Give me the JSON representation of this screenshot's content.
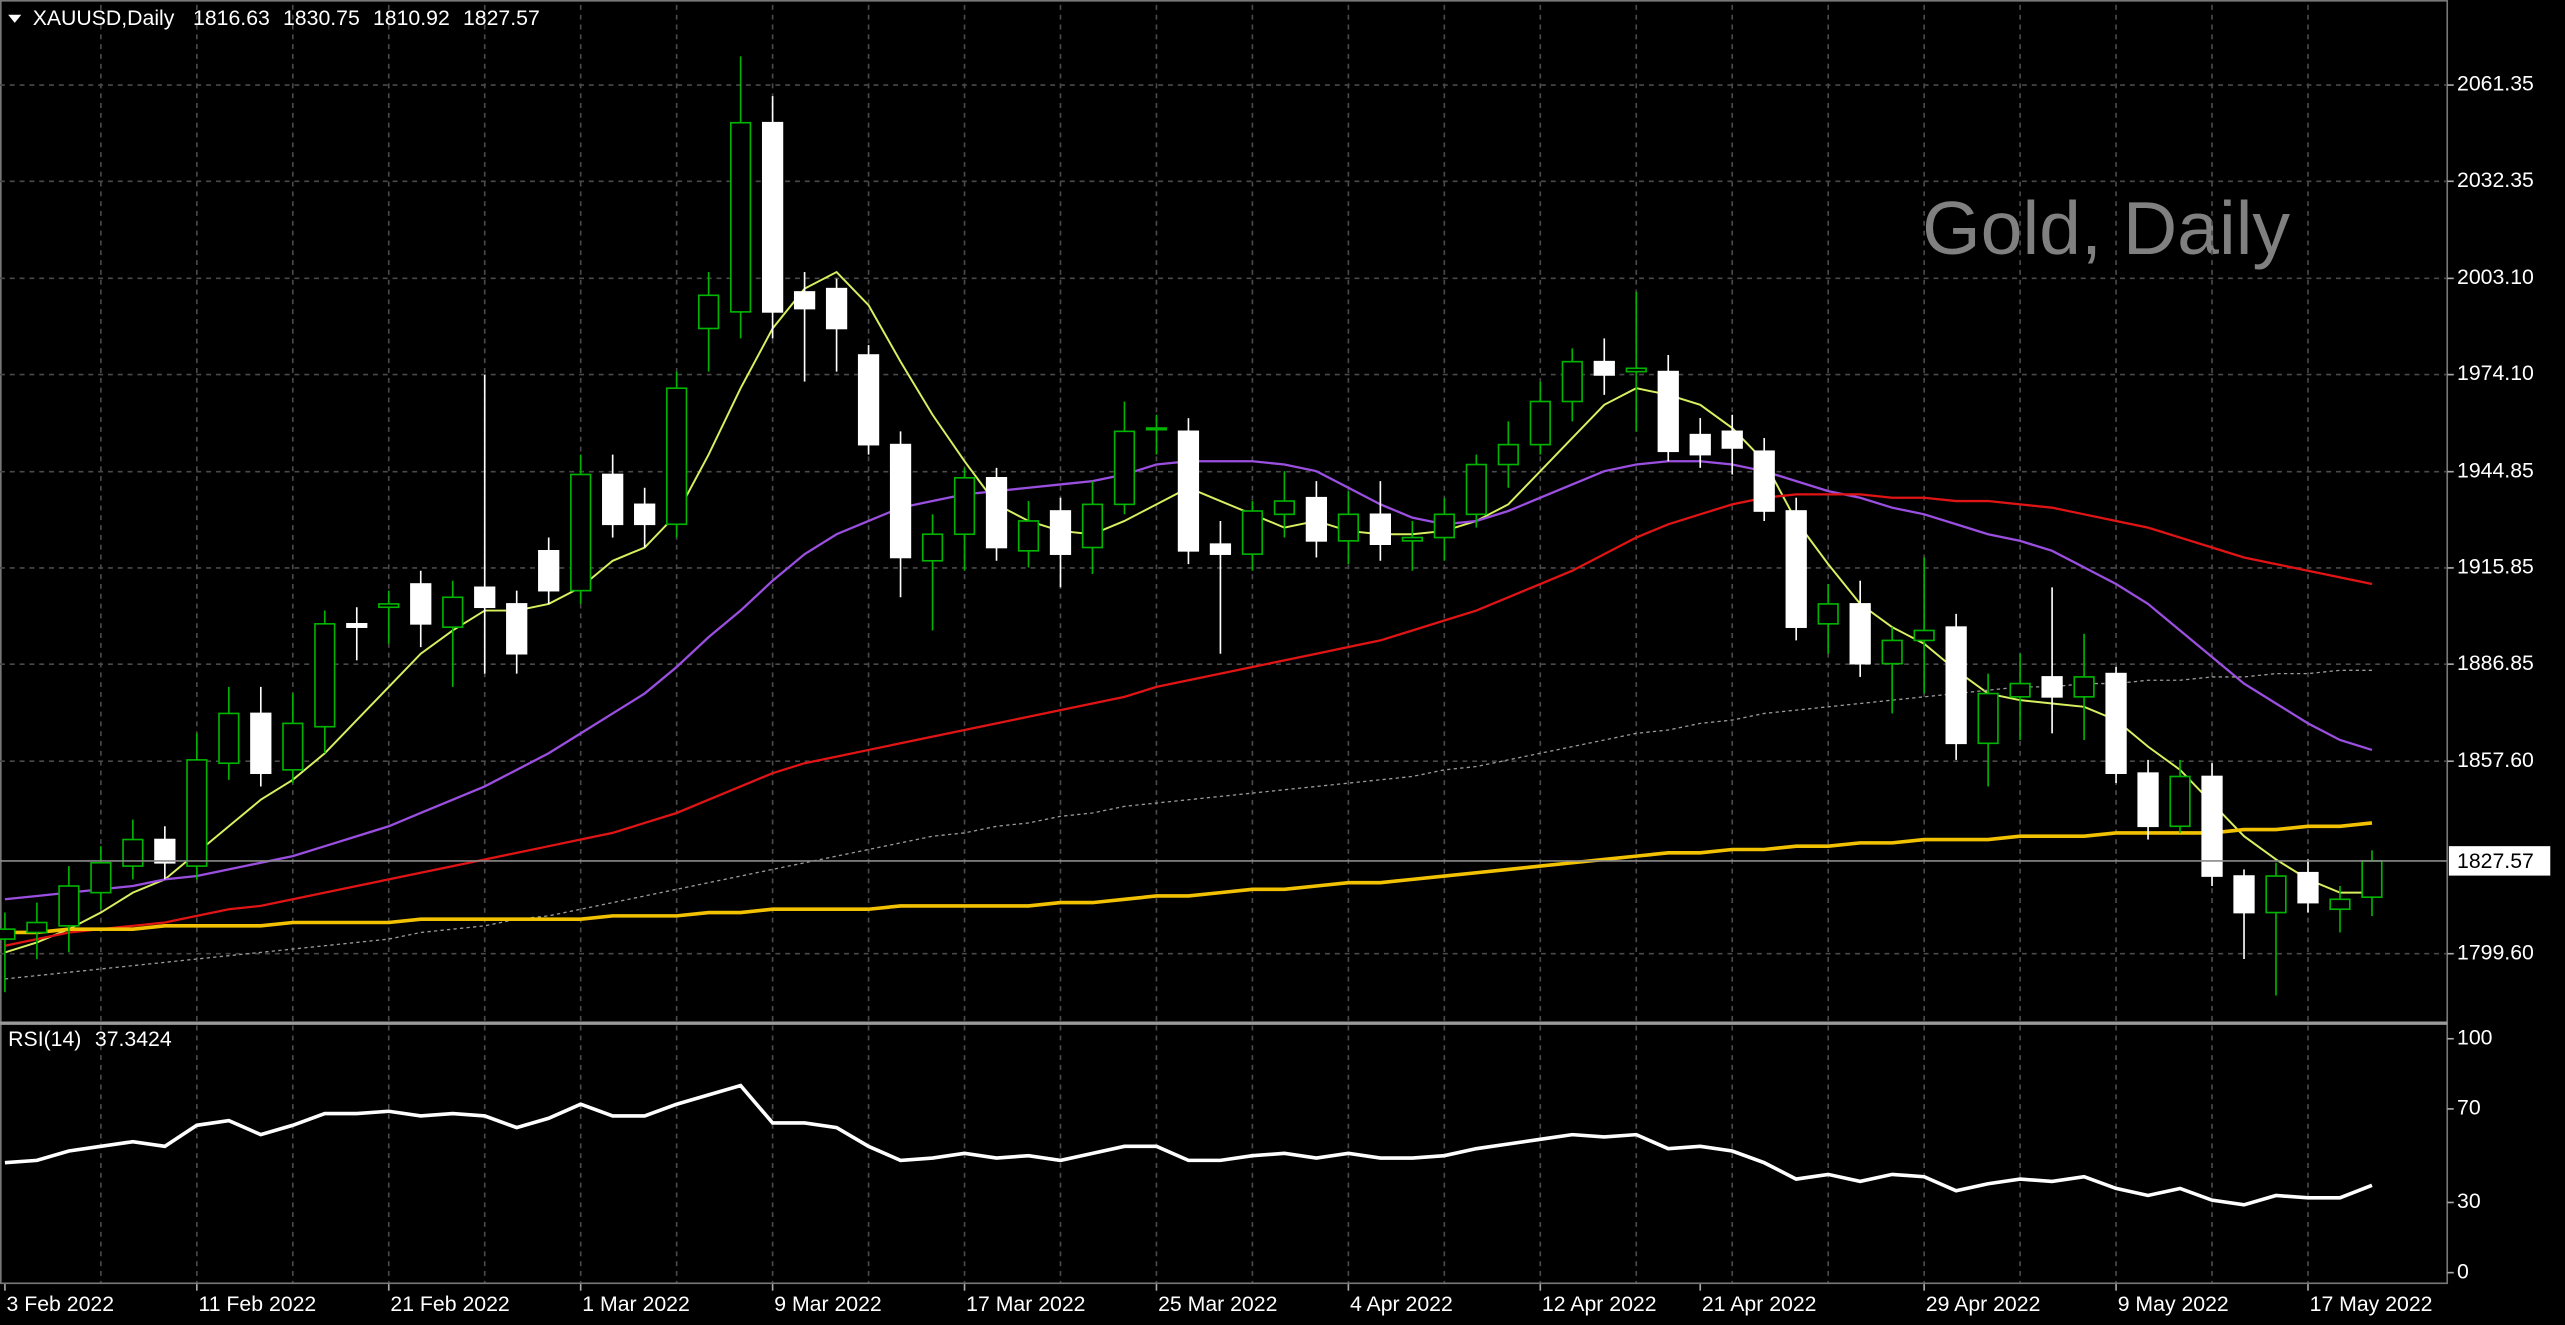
{
  "chart_data": [
    {
      "type": "candlestick",
      "title": "XAUUSD,Daily",
      "watermark": "Gold, Daily",
      "categories": [
        "3 Feb 2022",
        null,
        null,
        null,
        null,
        null,
        "11 Feb 2022",
        null,
        null,
        null,
        null,
        null,
        "21 Feb 2022",
        null,
        null,
        null,
        null,
        null,
        "1 Mar 2022",
        null,
        null,
        null,
        null,
        null,
        "9 Mar 2022",
        null,
        null,
        null,
        null,
        null,
        "17 Mar 2022",
        null,
        null,
        null,
        null,
        null,
        "25 Mar 2022",
        null,
        null,
        null,
        null,
        null,
        "4 Apr 2022",
        null,
        null,
        null,
        null,
        null,
        "12 Apr 2022",
        null,
        null,
        null,
        null,
        "21 Apr 2022",
        null,
        null,
        null,
        null,
        null,
        null,
        "29 Apr 2022",
        null,
        null,
        null,
        null,
        null,
        "9 May 2022",
        null,
        null,
        null,
        null,
        null,
        "17 May 2022",
        null,
        null
      ],
      "open": [
        1804,
        1806,
        1808,
        1818,
        1826,
        1834,
        1826,
        1857,
        1872,
        1855,
        1868,
        1899,
        1904,
        1911,
        1898,
        1910,
        1905,
        1921,
        1909,
        1944,
        1935,
        1929,
        1988,
        1993,
        2050,
        1999,
        2000,
        1980,
        1953,
        1918,
        1926,
        1943,
        1921,
        1933,
        1922,
        1935,
        1958,
        1957,
        1923,
        1920,
        1932,
        1937,
        1924,
        1932,
        1924,
        1925,
        1932,
        1947,
        1953,
        1966,
        1978,
        1975,
        1975,
        1956,
        1957,
        1951,
        1933,
        1899,
        1905,
        1887,
        1894,
        1898,
        1863,
        1877,
        1883,
        1877,
        1884,
        1854,
        1838,
        1853,
        1823,
        1812,
        1824,
        1813,
        1816.63
      ],
      "high": [
        1812,
        1815,
        1826,
        1832,
        1840,
        1838,
        1866,
        1880,
        1880,
        1878,
        1903,
        1904,
        1909,
        1915,
        1912,
        1974,
        1909,
        1925,
        1950,
        1950,
        1940,
        1975,
        2005,
        2070,
        2058,
        2005,
        2003,
        1983,
        1957,
        1932,
        1946,
        1946,
        1936,
        1937,
        1942,
        1966,
        1962,
        1961,
        1930,
        1936,
        1945,
        1942,
        1939,
        1942,
        1930,
        1937,
        1950,
        1960,
        1972,
        1982,
        1985,
        1999,
        1980,
        1961,
        1962,
        1955,
        1937,
        1911,
        1912,
        1898,
        1919,
        1902,
        1884,
        1890,
        1910,
        1896,
        1886,
        1858,
        1858,
        1857,
        1825,
        1827,
        1828,
        1820,
        1830.75
      ],
      "low": [
        1788,
        1798,
        1800,
        1813,
        1822,
        1822,
        1822,
        1852,
        1850,
        1851,
        1860,
        1888,
        1893,
        1892,
        1880,
        1884,
        1884,
        1905,
        1905,
        1925,
        1922,
        1925,
        1975,
        1985,
        1985,
        1972,
        1975,
        1950,
        1907,
        1897,
        1915,
        1918,
        1916,
        1910,
        1914,
        1932,
        1950,
        1917,
        1890,
        1915,
        1925,
        1919,
        1917,
        1918,
        1915,
        1918,
        1928,
        1940,
        1950,
        1960,
        1968,
        1957,
        1948,
        1946,
        1944,
        1930,
        1894,
        1890,
        1883,
        1872,
        1878,
        1858,
        1850,
        1864,
        1866,
        1864,
        1851,
        1834,
        1836,
        1820,
        1798,
        1787,
        1812,
        1806,
        1810.92
      ],
      "close": [
        1807,
        1809,
        1820,
        1827,
        1834,
        1827,
        1858,
        1872,
        1854,
        1869,
        1899,
        1898,
        1905,
        1899,
        1907,
        1904,
        1890,
        1909,
        1944,
        1929,
        1929,
        1970,
        1998,
        2050,
        1993,
        1994,
        1988,
        1953,
        1919,
        1926,
        1943,
        1922,
        1930,
        1920,
        1935,
        1957,
        1958,
        1921,
        1920,
        1933,
        1936,
        1924,
        1932,
        1923,
        1925,
        1932,
        1947,
        1953,
        1966,
        1978,
        1974,
        1976,
        1951,
        1950,
        1952,
        1933,
        1898,
        1905,
        1887,
        1894,
        1897,
        1863,
        1878,
        1881,
        1877,
        1883,
        1854,
        1838,
        1853,
        1823,
        1812,
        1823,
        1815,
        1816,
        1827.57
      ],
      "up_color": "#00b400",
      "down_color": "#ffffff",
      "series": [
        {
          "color": "#d8f060",
          "width": 1.2,
          "values": [
            1800,
            1803,
            1807,
            1812,
            1818,
            1822,
            1830,
            1838,
            1846,
            1852,
            1860,
            1870,
            1880,
            1890,
            1897,
            1903,
            1903,
            1905,
            1910,
            1918,
            1922,
            1932,
            1950,
            1970,
            1988,
            2000,
            2005,
            1995,
            1978,
            1962,
            1948,
            1935,
            1930,
            1927,
            1926,
            1930,
            1935,
            1940,
            1936,
            1932,
            1928,
            1930,
            1927,
            1926,
            1926,
            1927,
            1930,
            1935,
            1945,
            1955,
            1965,
            1970,
            1968,
            1965,
            1958,
            1948,
            1930,
            1917,
            1905,
            1898,
            1893,
            1885,
            1878,
            1876,
            1875,
            1874,
            1870,
            1862,
            1855,
            1845,
            1835,
            1828,
            1822,
            1818,
            1818
          ]
        },
        {
          "color": "#9b4fe0",
          "width": 1.4,
          "values": [
            1816,
            1817,
            1818,
            1819,
            1820,
            1822,
            1823,
            1825,
            1827,
            1829,
            1832,
            1835,
            1838,
            1842,
            1846,
            1850,
            1855,
            1860,
            1866,
            1872,
            1878,
            1886,
            1895,
            1903,
            1912,
            1920,
            1926,
            1930,
            1934,
            1936,
            1938,
            1939,
            1940,
            1941,
            1942,
            1944,
            1947,
            1948,
            1948,
            1948,
            1947,
            1945,
            1940,
            1935,
            1931,
            1929,
            1930,
            1933,
            1937,
            1941,
            1945,
            1947,
            1948,
            1948,
            1947,
            1945,
            1942,
            1939,
            1937,
            1934,
            1932,
            1929,
            1926,
            1924,
            1921,
            1916,
            1911,
            1905,
            1897,
            1889,
            1881,
            1875,
            1869,
            1864,
            1861
          ]
        },
        {
          "color": "#e01414",
          "width": 1.4,
          "values": [
            1802,
            1804,
            1806,
            1807,
            1808,
            1809,
            1811,
            1813,
            1814,
            1816,
            1818,
            1820,
            1822,
            1824,
            1826,
            1828,
            1830,
            1832,
            1834,
            1836,
            1839,
            1842,
            1846,
            1850,
            1854,
            1857,
            1859,
            1861,
            1863,
            1865,
            1867,
            1869,
            1871,
            1873,
            1875,
            1877,
            1880,
            1882,
            1884,
            1886,
            1888,
            1890,
            1892,
            1894,
            1897,
            1900,
            1903,
            1907,
            1911,
            1915,
            1920,
            1925,
            1929,
            1932,
            1935,
            1937,
            1938,
            1938,
            1938,
            1937,
            1937,
            1936,
            1936,
            1935,
            1934,
            1932,
            1930,
            1928,
            1925,
            1922,
            1919,
            1917,
            1915,
            1913,
            1911
          ]
        },
        {
          "color": "#9a9a9a",
          "width": 0.8,
          "dashed": true,
          "values": [
            1792,
            1793,
            1794,
            1795,
            1796,
            1797,
            1798,
            1799,
            1800,
            1801,
            1802,
            1803,
            1804,
            1806,
            1807,
            1808,
            1810,
            1811,
            1813,
            1815,
            1817,
            1819,
            1821,
            1823,
            1825,
            1827,
            1829,
            1831,
            1833,
            1835,
            1836,
            1838,
            1839,
            1841,
            1842,
            1844,
            1845,
            1846,
            1847,
            1848,
            1849,
            1850,
            1851,
            1852,
            1853,
            1855,
            1856,
            1858,
            1860,
            1862,
            1864,
            1866,
            1867,
            1869,
            1870,
            1872,
            1873,
            1874,
            1875,
            1876,
            1877,
            1878,
            1879,
            1880,
            1880,
            1881,
            1881,
            1882,
            1882,
            1883,
            1883,
            1884,
            1884,
            1885,
            1885
          ]
        },
        {
          "color": "#f2c200",
          "width": 2.2,
          "values": [
            1806,
            1806,
            1807,
            1807,
            1807,
            1808,
            1808,
            1808,
            1808,
            1809,
            1809,
            1809,
            1809,
            1810,
            1810,
            1810,
            1810,
            1810,
            1810,
            1811,
            1811,
            1811,
            1812,
            1812,
            1813,
            1813,
            1813,
            1813,
            1814,
            1814,
            1814,
            1814,
            1814,
            1815,
            1815,
            1816,
            1817,
            1817,
            1818,
            1819,
            1819,
            1820,
            1821,
            1821,
            1822,
            1823,
            1824,
            1825,
            1826,
            1827,
            1828,
            1829,
            1830,
            1830,
            1831,
            1831,
            1832,
            1832,
            1833,
            1833,
            1834,
            1834,
            1834,
            1835,
            1835,
            1835,
            1836,
            1836,
            1836,
            1836,
            1837,
            1837,
            1838,
            1838,
            1839
          ]
        }
      ],
      "ylim": [
        1779.4,
        2085.5
      ],
      "yticks": [
        2061.35,
        2032.35,
        {
          "value": 2003.1,
          "label": "2003.10"
        },
        {
          "value": 1974.1,
          "label": "1974.10"
        },
        1944.85,
        1915.85,
        1886.85,
        {
          "value": 1857.6,
          "label": "1857.60"
        },
        {
          "value": 1799.6,
          "label": "1799.60"
        }
      ],
      "grid": true
    },
    {
      "type": "line",
      "title": "RSI(14)",
      "series": [
        {
          "color": "#ffffff",
          "values": [
            47,
            48,
            52,
            54,
            56,
            54,
            63,
            65,
            59,
            63,
            68,
            68,
            69,
            67,
            68,
            67,
            62,
            66,
            72,
            67,
            67,
            72,
            76,
            80,
            64,
            64,
            62,
            54,
            48,
            49,
            51,
            49,
            50,
            48,
            51,
            54,
            54,
            48,
            48,
            50,
            51,
            49,
            51,
            49,
            49,
            50,
            53,
            55,
            57,
            59,
            58,
            59,
            53,
            54,
            52,
            47,
            40,
            42,
            39,
            42,
            41,
            35,
            38,
            40,
            39,
            41,
            36,
            33,
            36,
            31,
            29,
            33,
            32,
            32,
            37.3424
          ]
        }
      ],
      "ylim": [
        -4.9,
        105.6
      ],
      "yticks": [
        100,
        70,
        30,
        0
      ]
    }
  ]
}
